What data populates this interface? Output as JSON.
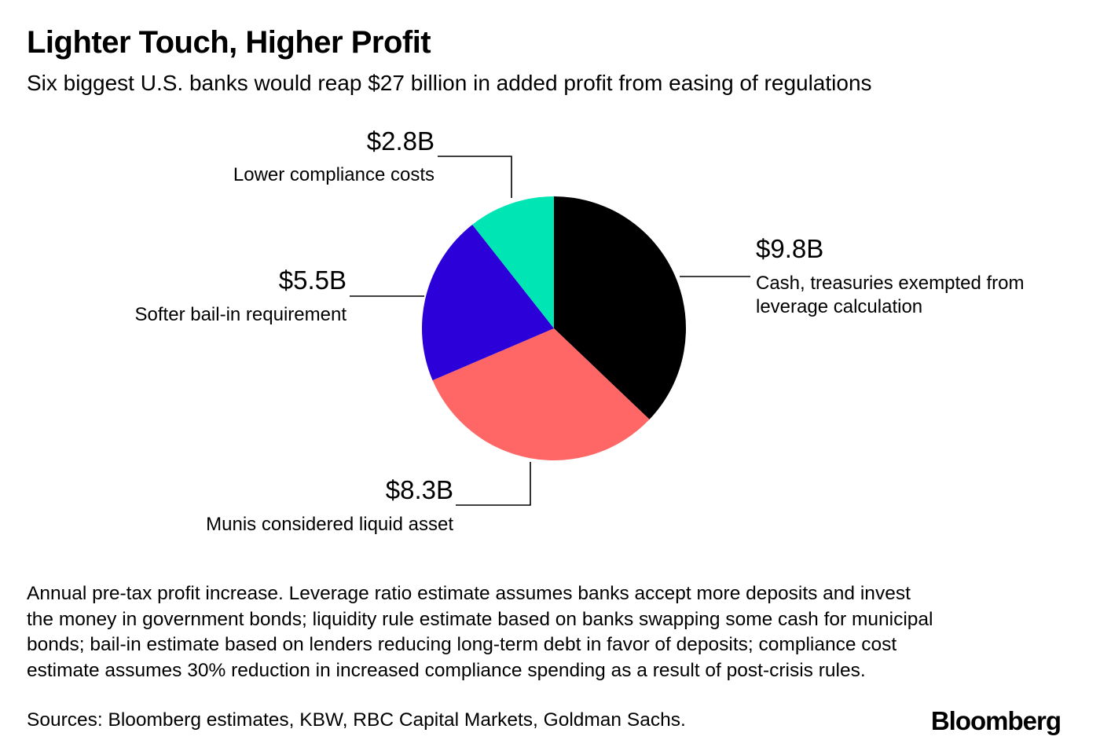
{
  "title": "Lighter Touch, Higher Profit",
  "subtitle": "Six biggest U.S. banks would reap $27 billion in added profit from easing of regulations",
  "chart_data": {
    "type": "pie",
    "title": "Lighter Touch, Higher Profit",
    "subtitle": "Six biggest U.S. banks would reap $27 billion in added profit from easing of regulations",
    "unit": "billion USD",
    "total_label": "$27 billion",
    "slices": [
      {
        "category": "Cash, treasuries exempted from leverage calculation",
        "category_lines": [
          "Cash, treasuries exempted from",
          "leverage calculation"
        ],
        "value": 9.8,
        "value_label": "$9.8B",
        "color": "#000000"
      },
      {
        "category": "Munis considered liquid asset",
        "category_lines": [
          "Munis considered liquid asset"
        ],
        "value": 8.3,
        "value_label": "$8.3B",
        "color": "#ff6666"
      },
      {
        "category": "Softer bail-in requirement",
        "category_lines": [
          "Softer bail-in requirement"
        ],
        "value": 5.5,
        "value_label": "$5.5B",
        "color": "#2c00d8"
      },
      {
        "category": "Lower compliance costs",
        "category_lines": [
          "Lower compliance costs"
        ],
        "value": 2.8,
        "value_label": "$2.8B",
        "color": "#00e5b4"
      }
    ],
    "start_angle": "12 o'clock",
    "direction": "clockwise"
  },
  "footnote": "Annual pre-tax profit increase. Leverage ratio estimate assumes banks accept more deposits and invest the money in government bonds; liquidity rule estimate based on banks swapping some cash for municipal bonds; bail-in estimate based on lenders reducing long-term debt in favor of deposits; compliance cost estimate assumes 30% reduction in increased compliance spending as a result of post-crisis rules.",
  "sources": "Sources: Bloomberg estimates, KBW, RBC Capital Markets, Goldman Sachs.",
  "brand": "Bloomberg"
}
